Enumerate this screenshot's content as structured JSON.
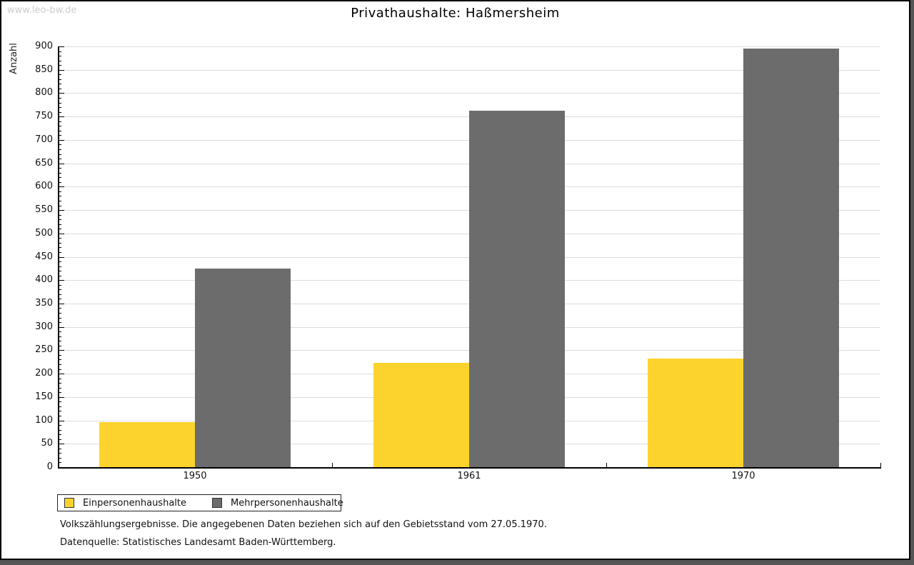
{
  "page": {
    "watermark": "www.leo-bw.de",
    "title": "Privathaushalte: Haßmersheim",
    "footer_line1": "Volkszählungsergebnisse. Die angegebenen Daten beziehen sich auf den Gebietsstand vom 27.05.1970.",
    "footer_line2": "Datenquelle: Statistisches Landesamt Baden-Württemberg."
  },
  "colors": {
    "series_einpersonen": "#FCD32C",
    "series_mehrpersonen": "#6C6C6C",
    "gridline": "#DDDDDD",
    "axis": "#000000",
    "watermark": "#CCCCCC",
    "frame_shadow": "#555555"
  },
  "chart_data": {
    "type": "bar",
    "title": "Privathaushalte: Haßmersheim",
    "xlabel": "",
    "ylabel": "Anzahl",
    "categories": [
      "1950",
      "1961",
      "1970"
    ],
    "series": [
      {
        "name": "Einpersonenhaushalte",
        "color": "#FCD32C",
        "values": [
          97,
          223,
          232
        ]
      },
      {
        "name": "Mehrpersonenhaushalte",
        "color": "#6C6C6C",
        "values": [
          425,
          762,
          895
        ]
      }
    ],
    "ylim": [
      0,
      900
    ],
    "ytick_step": 50,
    "yminor_tick_step": 10,
    "grid": true,
    "legend_position": "bottom-left",
    "legend_entries": [
      "Einpersonenhaushalte",
      "Mehrpersonenhaushalte"
    ]
  }
}
